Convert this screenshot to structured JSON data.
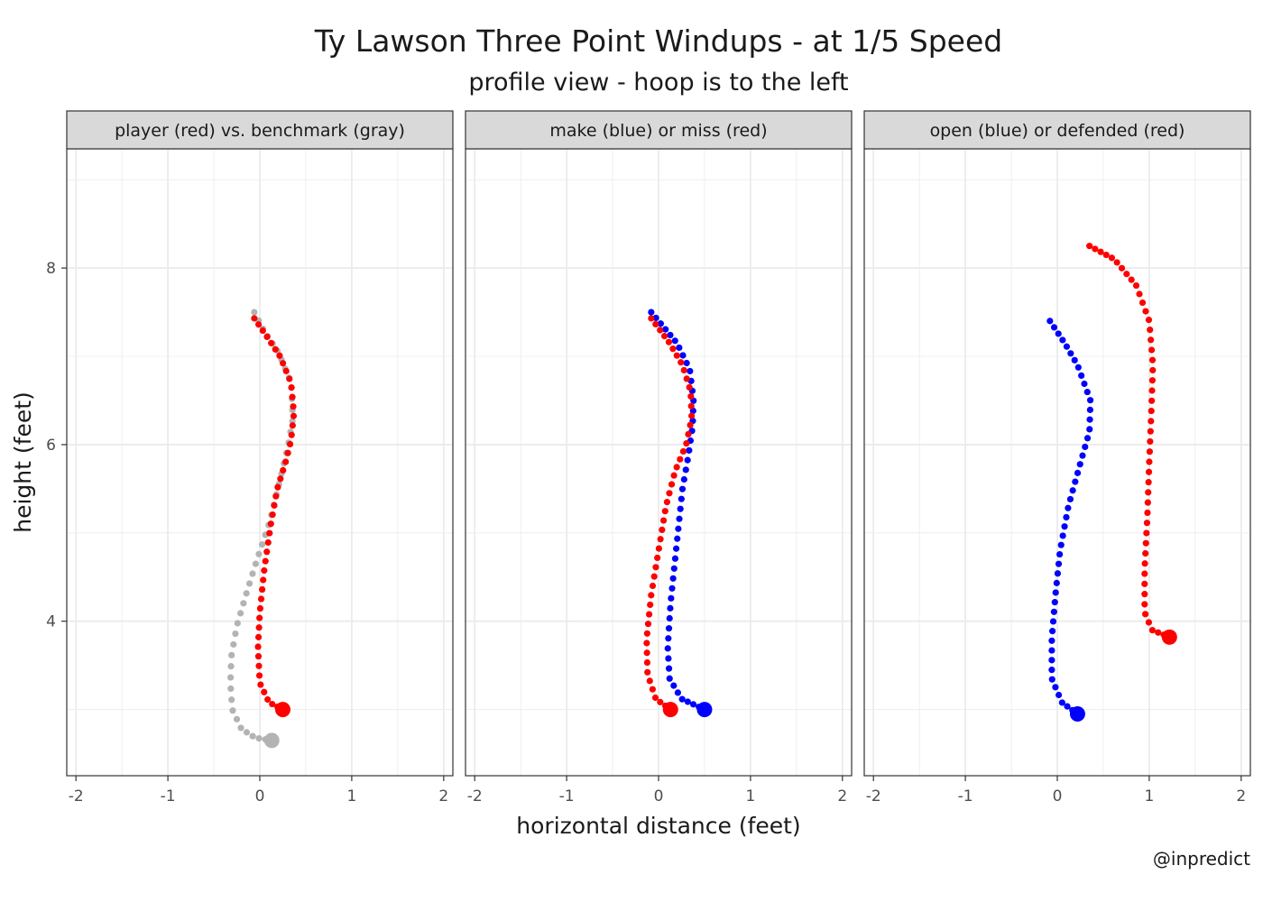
{
  "title": "Ty Lawson Three Point Windups - at 1/5 Speed",
  "subtitle": "profile view - hoop is to the left",
  "caption": "@inpredict",
  "colors": {
    "red": "#ff0000",
    "blue": "#0000ff",
    "gray": "#b3b3b3",
    "strip": "#d9d9d9",
    "grid": "#ebebeb"
  },
  "chart_data": {
    "type": "scatter",
    "xlabel": "horizontal distance (feet)",
    "ylabel": "height (feet)",
    "xlim": [
      -2.1,
      2.1
    ],
    "ylim": [
      2.25,
      9.35
    ],
    "x_ticks": [
      -2,
      -1,
      0,
      1,
      2
    ],
    "y_ticks": [
      4,
      6,
      8
    ],
    "grid": true,
    "panels": [
      {
        "strip": "player (red) vs. benchmark (gray)",
        "series": [
          {
            "color": "gray",
            "start": [
              0.13,
              2.65
            ],
            "path": [
              [
                0.13,
                2.65
              ],
              [
                -0.05,
                2.68
              ],
              [
                -0.2,
                2.78
              ],
              [
                -0.3,
                3.0
              ],
              [
                -0.32,
                3.3
              ],
              [
                -0.31,
                3.6
              ],
              [
                -0.25,
                3.95
              ],
              [
                -0.15,
                4.3
              ],
              [
                -0.03,
                4.7
              ],
              [
                0.1,
                5.1
              ],
              [
                0.22,
                5.6
              ],
              [
                0.31,
                6.0
              ],
              [
                0.36,
                6.3
              ],
              [
                0.34,
                6.7
              ],
              [
                0.2,
                7.05
              ],
              [
                0.04,
                7.3
              ],
              [
                -0.06,
                7.5
              ]
            ]
          },
          {
            "color": "red",
            "start": [
              0.25,
              3.0
            ],
            "path": [
              [
                0.25,
                3.0
              ],
              [
                0.1,
                3.08
              ],
              [
                0.0,
                3.3
              ],
              [
                -0.02,
                3.7
              ],
              [
                0.0,
                4.1
              ],
              [
                0.05,
                4.6
              ],
              [
                0.12,
                5.1
              ],
              [
                0.19,
                5.5
              ],
              [
                0.28,
                5.8
              ],
              [
                0.34,
                6.05
              ],
              [
                0.37,
                6.35
              ],
              [
                0.34,
                6.7
              ],
              [
                0.22,
                7.0
              ],
              [
                0.06,
                7.25
              ],
              [
                -0.06,
                7.43
              ]
            ]
          }
        ]
      },
      {
        "strip": "make (blue) or miss (red)",
        "series": [
          {
            "color": "blue",
            "start": [
              0.5,
              3.0
            ],
            "path": [
              [
                0.5,
                3.0
              ],
              [
                0.25,
                3.12
              ],
              [
                0.12,
                3.35
              ],
              [
                0.1,
                3.7
              ],
              [
                0.13,
                4.2
              ],
              [
                0.18,
                4.7
              ],
              [
                0.22,
                5.1
              ],
              [
                0.26,
                5.5
              ],
              [
                0.32,
                5.85
              ],
              [
                0.37,
                6.2
              ],
              [
                0.38,
                6.5
              ],
              [
                0.34,
                6.85
              ],
              [
                0.2,
                7.15
              ],
              [
                0.04,
                7.35
              ],
              [
                -0.08,
                7.5
              ]
            ]
          },
          {
            "color": "red",
            "start": [
              0.13,
              3.0
            ],
            "path": [
              [
                0.13,
                3.0
              ],
              [
                -0.03,
                3.12
              ],
              [
                -0.12,
                3.4
              ],
              [
                -0.13,
                3.8
              ],
              [
                -0.08,
                4.3
              ],
              [
                0.0,
                4.8
              ],
              [
                0.08,
                5.3
              ],
              [
                0.18,
                5.7
              ],
              [
                0.3,
                6.0
              ],
              [
                0.36,
                6.3
              ],
              [
                0.35,
                6.6
              ],
              [
                0.26,
                6.9
              ],
              [
                0.12,
                7.15
              ],
              [
                0.0,
                7.32
              ],
              [
                -0.08,
                7.43
              ]
            ]
          }
        ]
      },
      {
        "strip": "open (blue) or defended (red)",
        "series": [
          {
            "color": "blue",
            "start": [
              0.22,
              2.95
            ],
            "path": [
              [
                0.22,
                2.95
              ],
              [
                0.05,
                3.08
              ],
              [
                -0.06,
                3.35
              ],
              [
                -0.06,
                3.8
              ],
              [
                -0.02,
                4.3
              ],
              [
                0.03,
                4.8
              ],
              [
                0.12,
                5.3
              ],
              [
                0.24,
                5.75
              ],
              [
                0.35,
                6.15
              ],
              [
                0.36,
                6.5
              ],
              [
                0.22,
                6.9
              ],
              [
                0.08,
                7.15
              ],
              [
                -0.08,
                7.4
              ]
            ]
          },
          {
            "color": "red",
            "start": [
              1.22,
              3.82
            ],
            "path": [
              [
                1.22,
                3.82
              ],
              [
                1.03,
                3.9
              ],
              [
                0.95,
                4.1
              ],
              [
                0.95,
                4.6
              ],
              [
                0.98,
                5.2
              ],
              [
                1.0,
                5.8
              ],
              [
                1.02,
                6.3
              ],
              [
                1.04,
                6.9
              ],
              [
                1.0,
                7.4
              ],
              [
                0.86,
                7.8
              ],
              [
                0.62,
                8.1
              ],
              [
                0.35,
                8.25
              ]
            ]
          }
        ]
      }
    ]
  }
}
